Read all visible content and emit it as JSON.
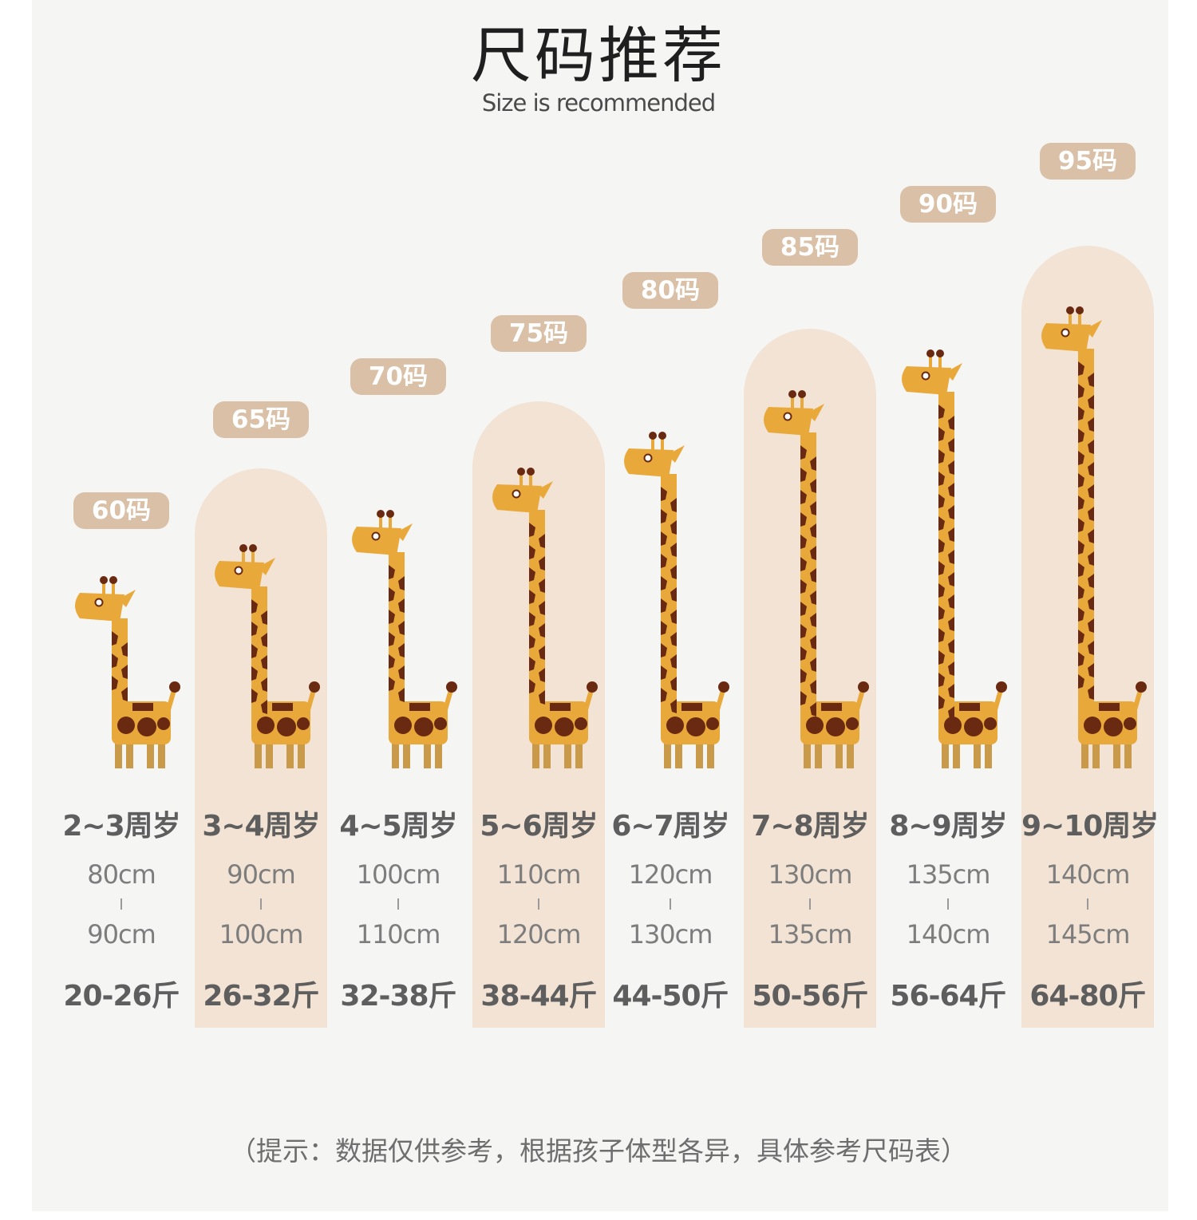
{
  "header": {
    "title": "尺码推荐",
    "subtitle": "Size is recommended"
  },
  "colors": {
    "arch": "#f2e3d4",
    "badge": "#d9c0a7",
    "giraffe_body": "#e9a93a",
    "giraffe_spots": "#6a2a12",
    "giraffe_legs": "#c89a4a"
  },
  "sizes": [
    {
      "size": "60码",
      "age": "2~3周岁",
      "height_min": "80cm",
      "height_max": "90cm",
      "weight": "20-26斤",
      "highlighted": false
    },
    {
      "size": "65码",
      "age": "3~4周岁",
      "height_min": "90cm",
      "height_max": "100cm",
      "weight": "26-32斤",
      "highlighted": true
    },
    {
      "size": "70码",
      "age": "4~5周岁",
      "height_min": "100cm",
      "height_max": "110cm",
      "weight": "32-38斤",
      "highlighted": false
    },
    {
      "size": "75码",
      "age": "5~6周岁",
      "height_min": "110cm",
      "height_max": "120cm",
      "weight": "38-44斤",
      "highlighted": true
    },
    {
      "size": "80码",
      "age": "6~7周岁",
      "height_min": "120cm",
      "height_max": "130cm",
      "weight": "44-50斤",
      "highlighted": false
    },
    {
      "size": "85码",
      "age": "7~8周岁",
      "height_min": "130cm",
      "height_max": "135cm",
      "weight": "50-56斤",
      "highlighted": true
    },
    {
      "size": "90码",
      "age": "8~9周岁",
      "height_min": "135cm",
      "height_max": "140cm",
      "weight": "56-64斤",
      "highlighted": false
    },
    {
      "size": "95码",
      "age": "9~10周岁",
      "height_min": "140cm",
      "height_max": "145cm",
      "weight": "64-80斤",
      "highlighted": true
    }
  ],
  "footer": {
    "note": "（提示：数据仅供参考，根据孩子体型各异，具体参考尺码表）"
  }
}
